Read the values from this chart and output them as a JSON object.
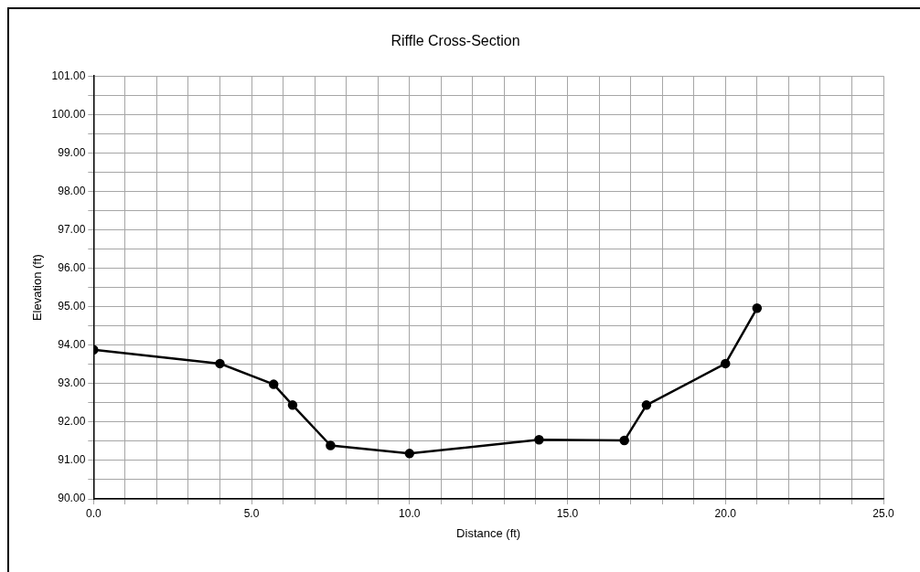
{
  "chart_data": {
    "type": "line",
    "title": "Riffle Cross-Section",
    "xlabel": "Distance (ft)",
    "ylabel": "Elevation (ft)",
    "x": [
      0,
      4.0,
      5.7,
      6.3,
      7.5,
      10.0,
      14.1,
      16.8,
      17.5,
      20.0,
      21.0
    ],
    "series": [
      {
        "color": "#000000",
        "values": [
          93.88,
          93.52,
          92.98,
          92.44,
          91.39,
          91.18,
          91.54,
          91.52,
          92.44,
          93.52,
          94.96
        ]
      }
    ],
    "xlim": [
      0,
      25
    ],
    "xticks": [
      {
        "value": 0,
        "label": "0.0"
      },
      {
        "value": 1,
        "label": null
      },
      {
        "value": 2,
        "label": null
      },
      {
        "value": 3,
        "label": null
      },
      {
        "value": 4,
        "label": null
      },
      {
        "value": 5,
        "label": "5.0"
      },
      {
        "value": 6,
        "label": null
      },
      {
        "value": 7,
        "label": null
      },
      {
        "value": 8,
        "label": null
      },
      {
        "value": 9,
        "label": null
      },
      {
        "value": 10,
        "label": "10.0"
      },
      {
        "value": 11,
        "label": null
      },
      {
        "value": 12,
        "label": null
      },
      {
        "value": 13,
        "label": null
      },
      {
        "value": 14,
        "label": null
      },
      {
        "value": 15,
        "label": "15.0"
      },
      {
        "value": 16,
        "label": null
      },
      {
        "value": 17,
        "label": null
      },
      {
        "value": 18,
        "label": null
      },
      {
        "value": 19,
        "label": null
      },
      {
        "value": 20,
        "label": "20.0"
      },
      {
        "value": 21,
        "label": null
      },
      {
        "value": 22,
        "label": null
      },
      {
        "value": 23,
        "label": null
      },
      {
        "value": 24,
        "label": null
      },
      {
        "value": 25,
        "label": "25.0"
      }
    ],
    "ylim": [
      90,
      101
    ],
    "yticks": [
      {
        "value": 90,
        "label": "90.00"
      },
      {
        "value": 90.5,
        "label": null
      },
      {
        "value": 91,
        "label": "91.00"
      },
      {
        "value": 91.5,
        "label": null
      },
      {
        "value": 92,
        "label": "92.00"
      },
      {
        "value": 92.5,
        "label": null
      },
      {
        "value": 93,
        "label": "93.00"
      },
      {
        "value": 93.5,
        "label": null
      },
      {
        "value": 94,
        "label": "94.00"
      },
      {
        "value": 94.5,
        "label": null
      },
      {
        "value": 95,
        "label": "95.00"
      },
      {
        "value": 95.5,
        "label": null
      },
      {
        "value": 96,
        "label": "96.00"
      },
      {
        "value": 96.5,
        "label": null
      },
      {
        "value": 97,
        "label": "97.00"
      },
      {
        "value": 97.5,
        "label": null
      },
      {
        "value": 98,
        "label": "98.00"
      },
      {
        "value": 98.5,
        "label": null
      },
      {
        "value": 99,
        "label": "99.00"
      },
      {
        "value": 99.5,
        "label": null
      },
      {
        "value": 100,
        "label": "100.00"
      },
      {
        "value": 100.5,
        "label": null
      },
      {
        "value": 101,
        "label": "101.00"
      }
    ],
    "grid": true,
    "legend": false,
    "marker": "circle",
    "line_style": "solid"
  }
}
